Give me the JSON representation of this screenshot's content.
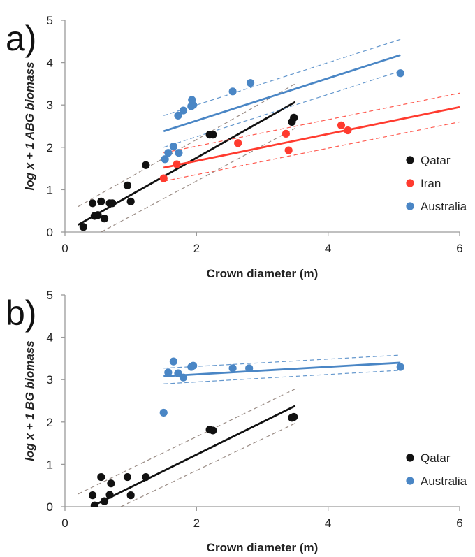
{
  "chart_data": [
    {
      "type": "scatter",
      "panel_label": "a)",
      "xlabel": "Crown diameter (m)",
      "ylabel": "log x + 1 ABG biomass",
      "xlim": [
        0,
        6
      ],
      "ylim": [
        0,
        5
      ],
      "x_ticks": [
        0,
        2,
        4,
        6
      ],
      "y_ticks": [
        0,
        1,
        2,
        3,
        4,
        5
      ],
      "legend_position": "right",
      "series": [
        {
          "name": "Qatar",
          "color": "#111111",
          "points": [
            [
              0.28,
              0.12
            ],
            [
              0.42,
              0.68
            ],
            [
              0.45,
              0.38
            ],
            [
              0.5,
              0.4
            ],
            [
              0.55,
              0.72
            ],
            [
              0.6,
              0.32
            ],
            [
              0.68,
              0.68
            ],
            [
              0.72,
              0.68
            ],
            [
              0.95,
              1.1
            ],
            [
              1.0,
              0.72
            ],
            [
              1.23,
              1.58
            ],
            [
              2.2,
              2.3
            ],
            [
              2.25,
              2.3
            ],
            [
              3.45,
              2.6
            ],
            [
              3.48,
              2.7
            ]
          ],
          "fit": [
            [
              0.2,
              0.17
            ],
            [
              3.5,
              3.07
            ]
          ],
          "ci_upper": [
            [
              0.2,
              0.6
            ],
            [
              3.5,
              3.5
            ]
          ],
          "ci_lower": [
            [
              0.55,
              0.0
            ],
            [
              3.5,
              2.45
            ]
          ]
        },
        {
          "name": "Iran",
          "color": "#ff3b2f",
          "points": [
            [
              1.5,
              1.27
            ],
            [
              1.7,
              1.6
            ],
            [
              2.63,
              2.1
            ],
            [
              3.36,
              2.32
            ],
            [
              3.4,
              1.93
            ],
            [
              4.2,
              2.52
            ],
            [
              4.3,
              2.4
            ]
          ],
          "fit": [
            [
              1.5,
              1.52
            ],
            [
              6.0,
              2.95
            ]
          ],
          "ci_upper": [
            [
              1.5,
              1.87
            ],
            [
              6.0,
              3.28
            ]
          ],
          "ci_lower": [
            [
              1.5,
              1.2
            ],
            [
              6.0,
              2.6
            ]
          ]
        },
        {
          "name": "Australia",
          "color": "#4a86c5",
          "points": [
            [
              1.52,
              1.72
            ],
            [
              1.57,
              1.87
            ],
            [
              1.65,
              2.02
            ],
            [
              1.72,
              2.75
            ],
            [
              1.73,
              1.87
            ],
            [
              1.8,
              2.87
            ],
            [
              1.92,
              2.97
            ],
            [
              1.93,
              3.12
            ],
            [
              1.95,
              3.0
            ],
            [
              2.55,
              3.32
            ],
            [
              2.82,
              3.52
            ],
            [
              5.1,
              3.75
            ]
          ],
          "fit": [
            [
              1.5,
              2.38
            ],
            [
              5.1,
              4.18
            ]
          ],
          "ci_upper": [
            [
              1.5,
              2.75
            ],
            [
              5.1,
              4.55
            ]
          ],
          "ci_lower": [
            [
              1.5,
              2.0
            ],
            [
              5.1,
              3.8
            ]
          ]
        }
      ]
    },
    {
      "type": "scatter",
      "panel_label": "b)",
      "xlabel": "Crown diameter (m)",
      "ylabel": "log x + 1 BG biomass",
      "xlim": [
        0,
        6
      ],
      "ylim": [
        0,
        5
      ],
      "x_ticks": [
        0,
        2,
        4,
        6
      ],
      "y_ticks": [
        0,
        1,
        2,
        3,
        4,
        5
      ],
      "legend_position": "right",
      "series": [
        {
          "name": "Qatar",
          "color": "#111111",
          "points": [
            [
              0.42,
              0.27
            ],
            [
              0.45,
              0.03
            ],
            [
              0.55,
              0.7
            ],
            [
              0.6,
              0.13
            ],
            [
              0.68,
              0.28
            ],
            [
              0.7,
              0.55
            ],
            [
              0.95,
              0.7
            ],
            [
              1.0,
              0.27
            ],
            [
              1.23,
              0.7
            ],
            [
              2.2,
              1.82
            ],
            [
              2.25,
              1.8
            ],
            [
              3.45,
              2.1
            ],
            [
              3.48,
              2.12
            ]
          ],
          "fit": [
            [
              0.4,
              0.0
            ],
            [
              3.5,
              2.38
            ]
          ],
          "ci_upper": [
            [
              0.2,
              0.3
            ],
            [
              3.5,
              2.78
            ]
          ],
          "ci_lower": [
            [
              0.85,
              0.0
            ],
            [
              3.5,
              1.97
            ]
          ]
        },
        {
          "name": "Australia",
          "color": "#4a86c5",
          "points": [
            [
              1.5,
              2.22
            ],
            [
              1.57,
              3.17
            ],
            [
              1.65,
              3.43
            ],
            [
              1.72,
              3.15
            ],
            [
              1.8,
              3.05
            ],
            [
              1.92,
              3.3
            ],
            [
              1.95,
              3.33
            ],
            [
              2.55,
              3.27
            ],
            [
              2.8,
              3.27
            ],
            [
              5.1,
              3.3
            ]
          ],
          "fit": [
            [
              1.5,
              3.08
            ],
            [
              5.1,
              3.4
            ]
          ],
          "ci_upper": [
            [
              1.5,
              3.27
            ],
            [
              5.1,
              3.58
            ]
          ],
          "ci_lower": [
            [
              1.5,
              2.9
            ],
            [
              5.1,
              3.22
            ]
          ]
        }
      ]
    }
  ]
}
